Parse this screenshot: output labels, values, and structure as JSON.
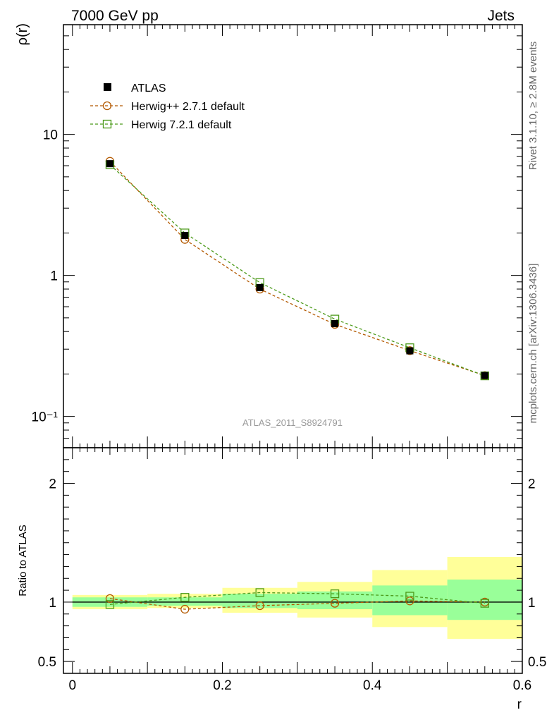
{
  "header": {
    "energy_label": "7000 GeV pp",
    "process_label": "Jets"
  },
  "side_labels": {
    "rivet": "Rivet 3.1.10, ≥ 2.8M events",
    "source": "mcplots.cern.ch [arXiv:1306.3436]"
  },
  "watermark": "ATLAS_2011_S8924791",
  "colors": {
    "data": "#000000",
    "herwigpp": "#b35900",
    "herwig7": "#4c9a1a",
    "band_outer": "#ffff99",
    "band_inner": "#99ff99"
  },
  "chart_data": [
    {
      "type": "scatter",
      "panel": "main",
      "ylabel": "ρ(r)",
      "yscale": "log",
      "ylim": [
        0.06,
        60
      ],
      "xlim": [
        -0.012,
        0.6
      ],
      "yticks": [
        {
          "value": 10,
          "label": "10"
        },
        {
          "value": 1,
          "label": "1"
        },
        {
          "value": 0.1,
          "label": "10⁻¹"
        }
      ],
      "legend_position": "top-left",
      "series": [
        {
          "name": "ATLAS",
          "marker": "filled-square",
          "x": [
            0.05,
            0.15,
            0.25,
            0.35,
            0.45,
            0.55
          ],
          "y": [
            6.2,
            1.92,
            0.82,
            0.455,
            0.292,
            0.195
          ]
        },
        {
          "name": "Herwig++ 2.7.1 default",
          "marker": "open-circle",
          "x": [
            0.05,
            0.15,
            0.25,
            0.35,
            0.45,
            0.55
          ],
          "y": [
            6.45,
            1.8,
            0.8,
            0.45,
            0.293,
            0.195
          ]
        },
        {
          "name": "Herwig 7.2.1 default",
          "marker": "open-square",
          "x": [
            0.05,
            0.15,
            0.25,
            0.35,
            0.45,
            0.55
          ],
          "y": [
            6.1,
            2.0,
            0.89,
            0.49,
            0.307,
            0.194
          ]
        }
      ]
    },
    {
      "type": "line",
      "panel": "ratio",
      "xlabel": "r",
      "ylabel": "Ratio to ATLAS",
      "ylim": [
        0.4,
        2.3
      ],
      "xlim": [
        -0.012,
        0.6
      ],
      "xticks": [
        0,
        0.2,
        0.4,
        0.6
      ],
      "xtick_labels": [
        "0",
        "0.2",
        "0.4",
        "0.6"
      ],
      "yticks": [
        {
          "value": 2,
          "label": "2"
        },
        {
          "value": 1,
          "label": "1"
        },
        {
          "value": 0.5,
          "label": "0.5"
        }
      ],
      "bands": [
        {
          "x0": 0.0,
          "x1": 0.1,
          "outer": [
            0.94,
            1.06
          ],
          "inner": [
            0.96,
            1.04
          ]
        },
        {
          "x0": 0.1,
          "x1": 0.2,
          "outer": [
            0.95,
            1.07
          ],
          "inner": [
            0.97,
            1.04
          ]
        },
        {
          "x0": 0.2,
          "x1": 0.3,
          "outer": [
            0.91,
            1.12
          ],
          "inner": [
            0.95,
            1.07
          ]
        },
        {
          "x0": 0.3,
          "x1": 0.4,
          "outer": [
            0.87,
            1.17
          ],
          "inner": [
            0.94,
            1.09
          ]
        },
        {
          "x0": 0.4,
          "x1": 0.5,
          "outer": [
            0.79,
            1.27
          ],
          "inner": [
            0.89,
            1.14
          ]
        },
        {
          "x0": 0.5,
          "x1": 0.6,
          "outer": [
            0.69,
            1.38
          ],
          "inner": [
            0.85,
            1.19
          ]
        }
      ],
      "series": [
        {
          "name": "Herwig++ 2.7.1 default",
          "marker": "open-circle",
          "x": [
            0.05,
            0.15,
            0.25,
            0.35,
            0.45,
            0.55
          ],
          "y": [
            1.03,
            0.94,
            0.97,
            0.99,
            1.01,
            1.0
          ]
        },
        {
          "name": "Herwig 7.2.1 default",
          "marker": "open-square",
          "x": [
            0.05,
            0.15,
            0.25,
            0.35,
            0.45,
            0.55
          ],
          "y": [
            0.98,
            1.04,
            1.08,
            1.07,
            1.05,
            0.99
          ]
        }
      ]
    }
  ]
}
